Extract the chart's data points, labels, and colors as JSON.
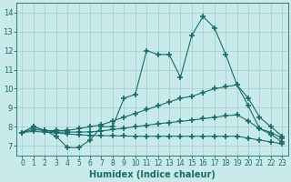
{
  "xlabel": "Humidex (Indice chaleur)",
  "background_color": "#c8eaea",
  "grid_color": "#a8d0d0",
  "line_color": "#1a6b6b",
  "xlim": [
    -0.5,
    23.5
  ],
  "ylim": [
    6.5,
    14.5
  ],
  "xticks": [
    0,
    1,
    2,
    3,
    4,
    5,
    6,
    7,
    8,
    9,
    10,
    11,
    12,
    13,
    14,
    15,
    16,
    17,
    18,
    19,
    20,
    21,
    22,
    23
  ],
  "yticks": [
    7,
    8,
    9,
    10,
    11,
    12,
    13,
    14
  ],
  "line1_x": [
    0,
    1,
    2,
    3,
    4,
    5,
    6,
    7,
    8,
    9,
    10,
    11,
    12,
    13,
    14,
    15,
    16,
    17,
    18,
    19,
    20,
    21,
    22,
    23
  ],
  "line1_y": [
    7.7,
    8.0,
    7.8,
    7.5,
    6.9,
    6.9,
    7.3,
    8.0,
    8.0,
    9.5,
    9.7,
    12.0,
    11.8,
    11.8,
    10.6,
    12.8,
    13.8,
    13.2,
    11.8,
    10.2,
    9.1,
    7.9,
    7.6,
    7.2
  ],
  "line2_x": [
    0,
    1,
    2,
    3,
    4,
    5,
    6,
    7,
    8,
    9,
    10,
    11,
    12,
    13,
    14,
    15,
    16,
    17,
    18,
    19,
    20,
    21,
    22,
    23
  ],
  "line2_y": [
    7.7,
    8.0,
    7.8,
    7.8,
    7.8,
    7.9,
    8.0,
    8.1,
    8.3,
    8.5,
    8.7,
    8.9,
    9.1,
    9.3,
    9.5,
    9.6,
    9.8,
    10.0,
    10.1,
    10.2,
    9.5,
    8.5,
    8.0,
    7.5
  ],
  "line3_x": [
    0,
    1,
    2,
    3,
    4,
    5,
    6,
    7,
    8,
    9,
    10,
    11,
    12,
    13,
    14,
    15,
    16,
    17,
    18,
    19,
    20,
    21,
    22,
    23
  ],
  "line3_y": [
    7.7,
    7.85,
    7.8,
    7.72,
    7.72,
    7.72,
    7.73,
    7.78,
    7.85,
    7.92,
    8.0,
    8.08,
    8.15,
    8.22,
    8.28,
    8.35,
    8.42,
    8.5,
    8.57,
    8.63,
    8.3,
    7.9,
    7.7,
    7.4
  ],
  "line4_x": [
    0,
    1,
    2,
    3,
    4,
    5,
    6,
    7,
    8,
    9,
    10,
    11,
    12,
    13,
    14,
    15,
    16,
    17,
    18,
    19,
    20,
    21,
    22,
    23
  ],
  "line4_y": [
    7.7,
    7.75,
    7.72,
    7.68,
    7.62,
    7.58,
    7.55,
    7.53,
    7.52,
    7.51,
    7.5,
    7.5,
    7.5,
    7.5,
    7.5,
    7.5,
    7.5,
    7.5,
    7.5,
    7.5,
    7.4,
    7.3,
    7.2,
    7.1
  ]
}
